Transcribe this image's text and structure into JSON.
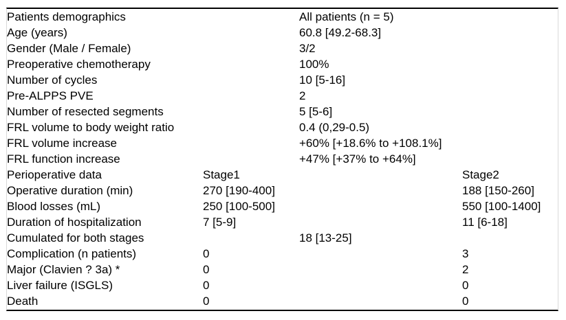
{
  "table": {
    "header": {
      "left": "Patients demographics",
      "right": "All patients (n = 5)"
    },
    "rows": [
      {
        "label": "Age (years)",
        "stage1": "",
        "all": "60.8 [49.2-68.3]",
        "stage2": ""
      },
      {
        "label": "Gender (Male / Female)",
        "stage1": "",
        "all": "3/2",
        "stage2": ""
      },
      {
        "label": "Preoperative chemotherapy",
        "stage1": "",
        "all": "100%",
        "stage2": ""
      },
      {
        "label": "Number of cycles",
        "stage1": "",
        "all": "10 [5-16]",
        "stage2": ""
      },
      {
        "label": "Pre-ALPPS PVE",
        "stage1": "",
        "all": "2",
        "stage2": ""
      },
      {
        "label": "Number of resected segments",
        "stage1": "",
        "all": "5 [5-6]",
        "stage2": ""
      },
      {
        "label": "FRL volume to body weight ratio",
        "stage1": "",
        "all": "0.4 (0,29-0.5)",
        "stage2": ""
      },
      {
        "label": "FRL volume increase",
        "stage1": "",
        "all": "+60% [+18.6% to +108.1%]",
        "stage2": ""
      },
      {
        "label": "FRL function increase",
        "stage1": "",
        "all": "+47% [+37% to +64%]",
        "stage2": ""
      },
      {
        "label": "Perioperative data",
        "stage1": "Stage1",
        "all": "",
        "stage2": "Stage2"
      },
      {
        "label": "Operative duration (min)",
        "stage1": "270 [190-400]",
        "all": "",
        "stage2": "188 [150-260]"
      },
      {
        "label": "Blood losses (mL)",
        "stage1": "250 [100-500]",
        "all": "",
        "stage2": "550 [100-1400]"
      },
      {
        "label": "Duration of hospitalization",
        "stage1": "7 [5-9]",
        "all": "",
        "stage2": "11 [6-18]"
      },
      {
        "label": "Cumulated for both stages",
        "stage1": "",
        "all": "18 [13-25]",
        "stage2": ""
      },
      {
        "label": "Complication (n patients)",
        "stage1": "0",
        "all": "",
        "stage2": "3"
      },
      {
        "label": "Major (Clavien ? 3a) *",
        "stage1": "0",
        "all": "",
        "stage2": "2"
      },
      {
        "label": "Liver failure (ISGLS)",
        "stage1": "0",
        "all": "",
        "stage2": "0"
      },
      {
        "label": "Death",
        "stage1": "0",
        "all": "",
        "stage2": "0"
      }
    ]
  },
  "colors": {
    "rule": "#000000",
    "frame": "#d9d9d9",
    "text": "#000000",
    "background": "#ffffff"
  }
}
